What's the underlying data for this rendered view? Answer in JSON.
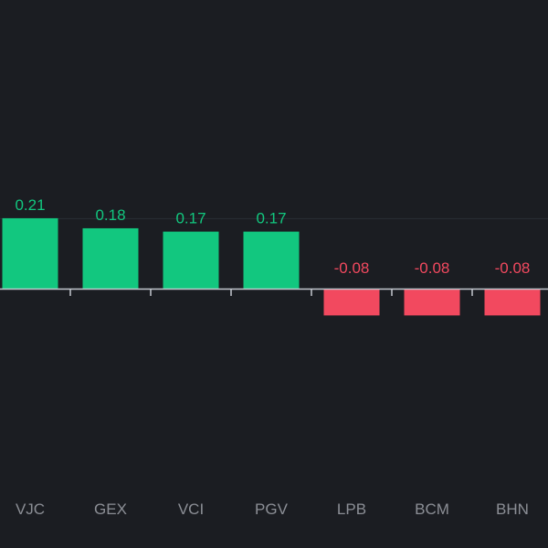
{
  "chart_data": {
    "type": "bar",
    "title": "",
    "xlabel": "",
    "ylabel": "",
    "categories": [
      "VJC",
      "GEX",
      "VCI",
      "PGV",
      "LPB",
      "BCM",
      "BHN"
    ],
    "values": [
      0.21,
      0.18,
      0.17,
      0.17,
      -0.08,
      -0.08,
      -0.08
    ],
    "value_labels": [
      "0.21",
      "0.18",
      "0.17",
      "0.17",
      "-0.08",
      "-0.08",
      "-0.08"
    ],
    "ylim": [
      -0.2,
      0.26
    ],
    "grid": false,
    "legend": "none",
    "colors": {
      "background": "#1b1d22",
      "positive": "#12c77f",
      "negative": "#f2495f",
      "axis": "#c4c8cf",
      "reference_line": "#2b2e35",
      "tick_label": "#8c8f96"
    }
  }
}
